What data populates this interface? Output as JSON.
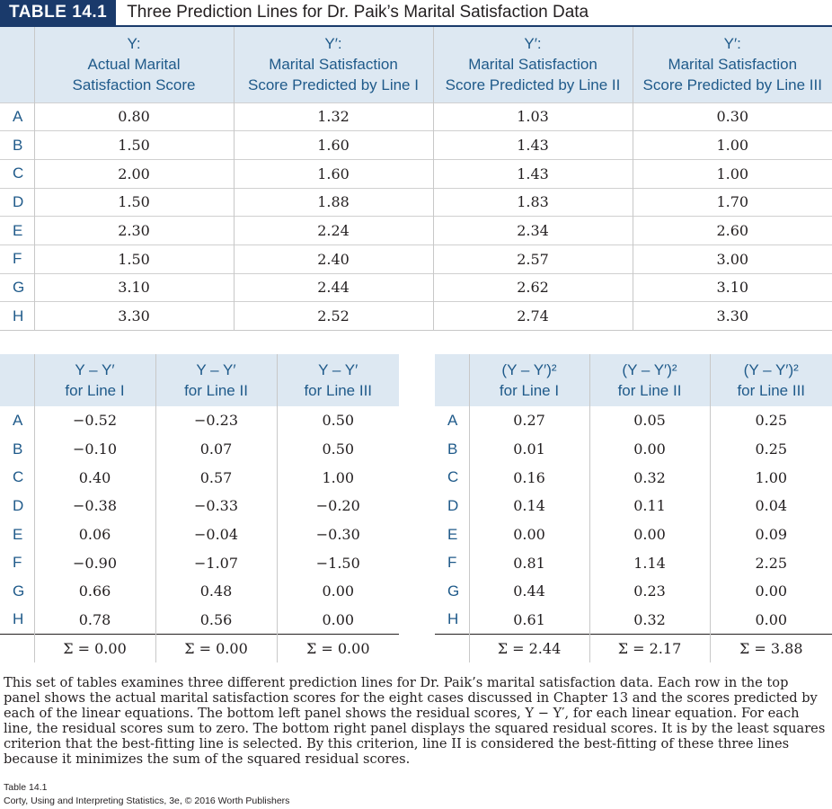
{
  "title": {
    "label": "TABLE 14.1",
    "text": "Three Prediction Lines for Dr. Paik’s Marital Satisfaction Data"
  },
  "top_table": {
    "headers": [
      [
        "Y:",
        "Actual Marital",
        "Satisfaction Score"
      ],
      [
        "Y′:",
        "Marital Satisfaction",
        "Score Predicted by Line I"
      ],
      [
        "Y′:",
        "Marital Satisfaction",
        "Score Predicted by Line II"
      ],
      [
        "Y′:",
        "Marital Satisfaction",
        "Score Predicted by Line III"
      ]
    ],
    "rows": [
      {
        "label": "A",
        "values": [
          "0.80",
          "1.32",
          "1.03",
          "0.30"
        ]
      },
      {
        "label": "B",
        "values": [
          "1.50",
          "1.60",
          "1.43",
          "1.00"
        ]
      },
      {
        "label": "C",
        "values": [
          "2.00",
          "1.60",
          "1.43",
          "1.00"
        ]
      },
      {
        "label": "D",
        "values": [
          "1.50",
          "1.88",
          "1.83",
          "1.70"
        ]
      },
      {
        "label": "E",
        "values": [
          "2.30",
          "2.24",
          "2.34",
          "2.60"
        ]
      },
      {
        "label": "F",
        "values": [
          "1.50",
          "2.40",
          "2.57",
          "3.00"
        ]
      },
      {
        "label": "G",
        "values": [
          "3.10",
          "2.44",
          "2.62",
          "3.10"
        ]
      },
      {
        "label": "H",
        "values": [
          "3.30",
          "2.52",
          "2.74",
          "3.30"
        ]
      }
    ]
  },
  "residual_table": {
    "headers": [
      [
        "Y – Y′",
        "for Line I"
      ],
      [
        "Y – Y′",
        "for Line II"
      ],
      [
        "Y – Y′",
        "for Line III"
      ]
    ],
    "rows": [
      {
        "label": "A",
        "values": [
          "−0.52",
          "−0.23",
          "0.50"
        ]
      },
      {
        "label": "B",
        "values": [
          "−0.10",
          "0.07",
          "0.50"
        ]
      },
      {
        "label": "C",
        "values": [
          "0.40",
          "0.57",
          "1.00"
        ]
      },
      {
        "label": "D",
        "values": [
          "−0.38",
          "−0.33",
          "−0.20"
        ]
      },
      {
        "label": "E",
        "values": [
          "0.06",
          "−0.04",
          "−0.30"
        ]
      },
      {
        "label": "F",
        "values": [
          "−0.90",
          "−1.07",
          "−1.50"
        ]
      },
      {
        "label": "G",
        "values": [
          "0.66",
          "0.48",
          "0.00"
        ]
      },
      {
        "label": "H",
        "values": [
          "0.78",
          "0.56",
          "0.00"
        ]
      }
    ],
    "sums": [
      "Σ = 0.00",
      "Σ = 0.00",
      "Σ = 0.00"
    ]
  },
  "squared_table": {
    "headers": [
      [
        "(Y – Y′)²",
        "for Line I"
      ],
      [
        "(Y – Y′)²",
        "for Line II"
      ],
      [
        "(Y – Y′)²",
        "for Line III"
      ]
    ],
    "rows": [
      {
        "label": "A",
        "values": [
          "0.27",
          "0.05",
          "0.25"
        ]
      },
      {
        "label": "B",
        "values": [
          "0.01",
          "0.00",
          "0.25"
        ]
      },
      {
        "label": "C",
        "values": [
          "0.16",
          "0.32",
          "1.00"
        ]
      },
      {
        "label": "D",
        "values": [
          "0.14",
          "0.11",
          "0.04"
        ]
      },
      {
        "label": "E",
        "values": [
          "0.00",
          "0.00",
          "0.09"
        ]
      },
      {
        "label": "F",
        "values": [
          "0.81",
          "1.14",
          "2.25"
        ]
      },
      {
        "label": "G",
        "values": [
          "0.44",
          "0.23",
          "0.00"
        ]
      },
      {
        "label": "H",
        "values": [
          "0.61",
          "0.32",
          "0.00"
        ]
      }
    ],
    "sums": [
      "Σ = 2.44",
      "Σ = 2.17",
      "Σ = 3.88"
    ]
  },
  "caption": "This set of tables examines three different prediction lines for Dr. Paik’s marital satisfaction data. Each row in the top panel shows the actual marital satisfaction scores for the eight cases discussed in Chapter 13 and the scores predicted by each of the linear equations. The bottom left panel shows the residual scores, Y − Y′, for each linear equation. For each line, the residual scores sum to zero. The bottom right panel displays the squared residual scores. It is by the least squares criterion that the best-fitting line is selected. By this criterion, line II is considered the best-fitting of these three lines because it minimizes the sum of the squared residual scores.",
  "footer": {
    "line1": "Table 14.1",
    "line2": "Corty, Using and Interpreting Statistics, 3e, © 2016 Worth Publishers"
  }
}
